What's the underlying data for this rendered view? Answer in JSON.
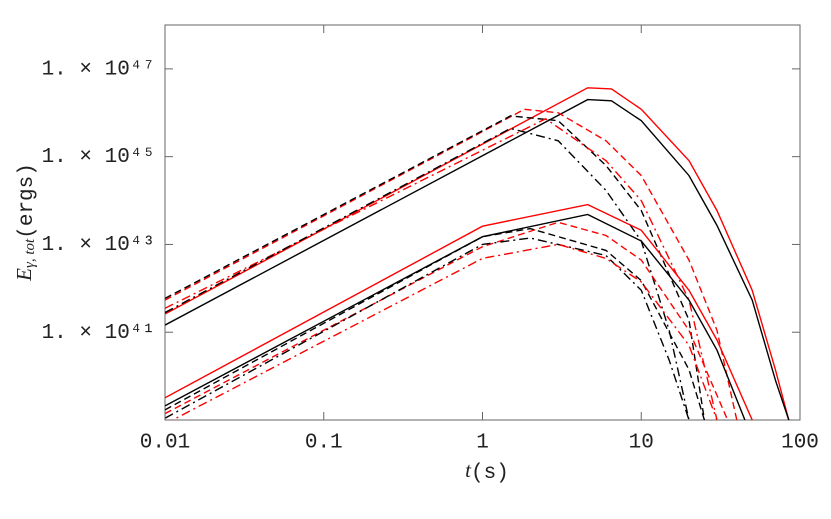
{
  "chart_data": {
    "type": "line",
    "log_x": true,
    "log_y": true,
    "x_label": {
      "main": "t",
      "unit": "(s)"
    },
    "y_label": {
      "main": "E",
      "sub": "γ, tot",
      "unit": "(ergs)"
    },
    "xlim": [
      0.01,
      100
    ],
    "xticks": [
      0.01,
      0.1,
      1,
      10,
      100
    ],
    "ylim": [
      1e+39,
      1e+48
    ],
    "yticks": [
      {
        "value": 1e+41,
        "label": "1. × 10⁴¹"
      },
      {
        "value": 1e+43,
        "label": "1. × 10⁴³"
      },
      {
        "value": 1e+45,
        "label": "1. × 10⁴⁵"
      },
      {
        "value": 1e+47,
        "label": "1. × 10⁴⁷"
      }
    ],
    "series": [
      {
        "color": "#ff0000",
        "dash": "solid",
        "x": [
          0.01,
          4.6,
          6.5,
          10,
          20,
          30,
          50,
          70,
          85
        ],
        "values": [
          2.6e+41,
          3.7e+46,
          3.5e+46,
          1.2e+46,
          8.1e+44,
          5.9e+43,
          9e+41,
          1.4e+40,
          1e+39
        ]
      },
      {
        "color": "#000000",
        "dash": "solid",
        "x": [
          0.01,
          4.6,
          6.5,
          10,
          20,
          30,
          50,
          70,
          85
        ],
        "values": [
          1.45e+41,
          2e+46,
          1.87e+46,
          6.6e+45,
          3.7e+44,
          2.7e+43,
          5.4e+41,
          8.1e+39,
          1e+39
        ]
      },
      {
        "color": "#ff0000",
        "dash": "dashed",
        "x": [
          0.01,
          1.84,
          3,
          6,
          10,
          20,
          30,
          40
        ],
        "values": [
          5.4e+41,
          1.2e+46,
          1e+46,
          2.3e+45,
          3.7e+44,
          4.4e+42,
          1.1e+41,
          1e+39
        ]
      },
      {
        "color": "#000000",
        "dash": "dashed",
        "x": [
          0.01,
          1.5,
          3,
          6,
          10,
          20,
          25
        ],
        "values": [
          5.9e+41,
          8.5e+45,
          6.6e+45,
          6.3e+44,
          5.9e+43,
          1.9e+41,
          1e+39
        ]
      },
      {
        "color": "#ff0000",
        "dash": "dashdot",
        "x": [
          0.01,
          2.5,
          6,
          10,
          20,
          30
        ],
        "values": [
          3.5e+41,
          7.3e+45,
          8.1e+44,
          1e+44,
          5.4e+41,
          1e+39
        ]
      },
      {
        "color": "#000000",
        "dash": "dashdot",
        "x": [
          0.01,
          1.5,
          3,
          6,
          10,
          15,
          20
        ],
        "values": [
          2.8e+41,
          4.4e+45,
          2.3e+45,
          1.7e+44,
          1.2e+43,
          1.1e+41,
          1e+39
        ]
      },
      {
        "color": "#ff0000",
        "dash": "solid",
        "x": [
          0.01,
          1,
          4.6,
          10,
          20,
          30,
          50
        ],
        "values": [
          3.2e+39,
          2.6e+43,
          8.1e+43,
          2.1e+43,
          9e+41,
          6.6e+40,
          1e+39
        ]
      },
      {
        "color": "#000000",
        "dash": "solid",
        "x": [
          0.01,
          1,
          4.6,
          10,
          20,
          30,
          45
        ],
        "values": [
          2.1e+39,
          1.5e+43,
          4.8e+43,
          1.2e+43,
          5.4e+41,
          3.9e+40,
          1e+39
        ]
      },
      {
        "color": "#000000",
        "dash": "dashed",
        "x": [
          0.01,
          1,
          2,
          6,
          10,
          20,
          25
        ],
        "values": [
          1.7e+39,
          1.5e+43,
          2.3e+43,
          7.3e+42,
          1.5e+42,
          1.4e+40,
          1e+39
        ]
      },
      {
        "color": "#ff0000",
        "dash": "dashed",
        "x": [
          0.01,
          1,
          3,
          6,
          10,
          20,
          35
        ],
        "values": [
          1.4e+39,
          8.9e+42,
          3.2e+43,
          1.6e+43,
          4.4e+42,
          1.1e+41,
          1e+39
        ]
      },
      {
        "color": "#000000",
        "dash": "dashdot",
        "x": [
          0.01,
          1,
          2,
          6,
          10,
          15,
          20
        ],
        "values": [
          1.1e+39,
          1e+43,
          1.4e+43,
          5.6e+42,
          9e+41,
          2.3e+40,
          1e+39
        ]
      },
      {
        "color": "#ff0000",
        "dash": "dashdot",
        "x": [
          0.01,
          1,
          3,
          6,
          10,
          20,
          30
        ],
        "values": [
          8.1e+38,
          4.8e+42,
          1e+43,
          4.8e+42,
          1.4e+42,
          5e+40,
          1e+39
        ]
      }
    ]
  }
}
